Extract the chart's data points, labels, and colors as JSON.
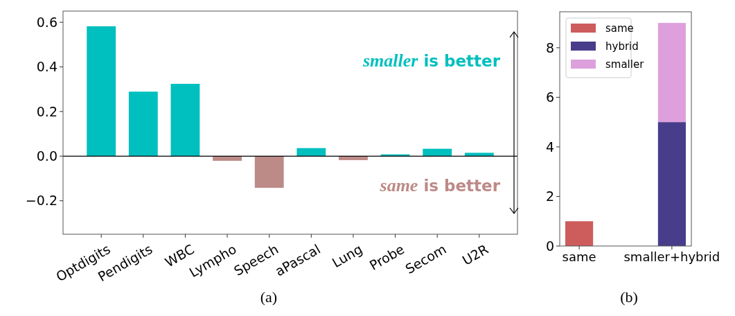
{
  "chart_data": [
    {
      "type": "bar",
      "categories": [
        "Optdigits",
        "Pendigits",
        "WBC",
        "Lympho",
        "Speech",
        "aPascal",
        "Lung",
        "Probe",
        "Secom",
        "U2R"
      ],
      "values": [
        0.582,
        0.289,
        0.324,
        -0.021,
        -0.142,
        0.036,
        -0.018,
        0.008,
        0.033,
        0.015
      ],
      "colors": [
        "#00bfbf",
        "#00bfbf",
        "#00bfbf",
        "#bc8a87",
        "#bc8a87",
        "#00bfbf",
        "#bc8a87",
        "#00bfbf",
        "#00bfbf",
        "#00bfbf"
      ],
      "ylim": [
        -0.35,
        0.65
      ],
      "yticks": [
        {
          "value": -0.2,
          "label": "−0.2"
        },
        {
          "value": 0,
          "label": "0.0"
        },
        {
          "value": 0.2,
          "label": "0.2"
        },
        {
          "value": 0.4,
          "label": "0.4"
        },
        {
          "value": 0.6,
          "label": "0.6"
        }
      ],
      "legend": false,
      "annotations": [
        "smaller is better",
        "same is better",
        "(a)"
      ]
    },
    {
      "type": "bar",
      "stacked": true,
      "categories": [
        "same",
        "smaller+hybrid"
      ],
      "series": [
        {
          "name": "same",
          "color": "#cd5c5c",
          "values": [
            1,
            null
          ]
        },
        {
          "name": "hybrid",
          "color": "#483d8b",
          "values": [
            null,
            5
          ]
        },
        {
          "name": "smaller",
          "color": "#dda0dd",
          "values": [
            null,
            4
          ]
        }
      ],
      "ylim": [
        0,
        9.45
      ],
      "yticks": [
        0,
        2,
        4,
        6,
        8
      ],
      "legend": "top left",
      "annotations": [
        "(b)"
      ]
    }
  ]
}
